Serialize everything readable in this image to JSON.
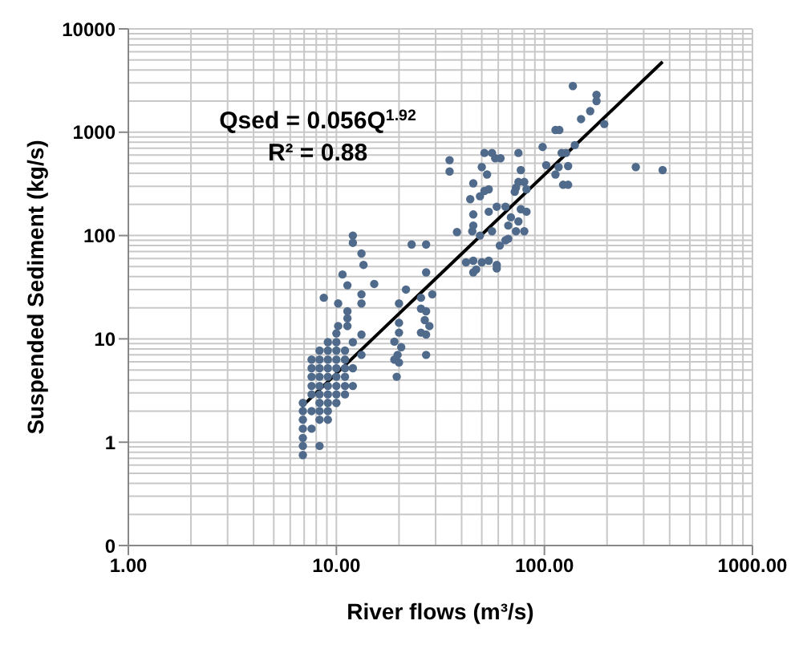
{
  "chart_data": {
    "type": "scatter",
    "xlabel": "River flows (m³/s)",
    "ylabel": "Suspended Sediment (kg/s)",
    "log": "xy",
    "grid": true,
    "xlim": [
      1,
      1000
    ],
    "ylim": [
      0.1,
      10000
    ],
    "xticks": [
      {
        "value": 1,
        "label": "1.00"
      },
      {
        "value": 10,
        "label": "10.00"
      },
      {
        "value": 100,
        "label": "100.00"
      },
      {
        "value": 1000,
        "label": "1000.00"
      }
    ],
    "yticks": [
      {
        "value": 0.1,
        "label": "0"
      },
      1,
      10,
      100,
      1000,
      10000
    ],
    "annotations": [
      "Qsed = 0.056Q$^{1.92}$",
      "R² = 0.88"
    ],
    "series": [
      {
        "color": "#4f6a8a",
        "marker": "circle",
        "x": [
          137,
          178,
          178,
          150,
          166,
          194,
          113,
          118,
          275,
          370,
          98,
          121,
          127,
          140,
          102,
          117,
          113,
          123,
          130,
          130,
          35,
          35,
          51.5,
          56,
          58,
          61.5,
          75,
          50,
          53,
          45.5,
          49,
          54,
          51.5,
          77,
          75,
          80,
          73,
          82,
          72,
          44,
          65,
          59,
          54,
          45.5,
          77,
          82,
          69,
          75,
          67,
          73,
          38,
          45,
          45.5,
          49,
          56,
          65,
          67,
          80,
          61,
          42,
          45.5,
          50,
          54,
          59,
          47,
          59,
          45.5,
          12,
          12,
          13.2,
          13.5,
          15.2,
          23,
          27,
          10.7,
          11.3,
          27,
          8.7,
          13.2,
          13.2,
          11.3,
          11.3,
          11.3,
          21.6,
          20,
          20,
          20,
          13.2,
          13.2,
          19,
          20.5,
          19.7,
          19,
          20,
          19.5,
          25.5,
          28.9,
          25.5,
          27,
          26.6,
          28,
          25.5,
          27,
          27,
          10.2,
          10.2,
          6.9,
          6.9,
          6.9,
          6.9,
          6.9,
          6.9,
          6.9,
          7.6,
          7.6,
          7.6,
          7.6,
          7.6,
          7.6,
          7.6,
          8.3,
          8.3,
          8.3,
          8.3,
          8.3,
          8.3,
          8.3,
          8.3,
          8.3,
          8.3,
          9.1,
          9.1,
          9.1,
          9.1,
          9.1,
          9.1,
          9.1,
          9.1,
          9.1,
          9.1,
          10,
          10,
          10,
          10,
          10,
          10,
          10,
          10,
          10,
          11,
          11,
          11,
          11,
          11,
          11,
          12,
          12,
          12
        ],
        "values": [
          2800,
          2300,
          2000,
          1340,
          1600,
          1200,
          1050,
          1050,
          460,
          430,
          720,
          630,
          630,
          750,
          480,
          460,
          390,
          310,
          310,
          470,
          537,
          417,
          630,
          630,
          560,
          560,
          630,
          460,
          390,
          320,
          240,
          280,
          270,
          430,
          330,
          330,
          290,
          280,
          265,
          225,
          190,
          190,
          170,
          160,
          180,
          170,
          150,
          137,
          125,
          110,
          108,
          110,
          125,
          100,
          110,
          90,
          93,
          110,
          80,
          55,
          57,
          55,
          57,
          52,
          47,
          48,
          44,
          100,
          85,
          67,
          52,
          34,
          82,
          82,
          42,
          33,
          44,
          25,
          27,
          22,
          18.5,
          15.8,
          13.3,
          30,
          22,
          14.3,
          11.5,
          11,
          7,
          9.4,
          8.3,
          7,
          6.3,
          5.9,
          4.3,
          25,
          27,
          19.6,
          18.5,
          15.2,
          13.3,
          11.5,
          11,
          7,
          22,
          13.3,
          0.75,
          0.92,
          1.1,
          1.35,
          1.65,
          2.0,
          2.4,
          1.35,
          2.0,
          2.9,
          3.5,
          4.3,
          5.2,
          6.3,
          0.92,
          1.65,
          2.0,
          2.4,
          2.9,
          3.5,
          4.3,
          5.2,
          6.3,
          7.7,
          1.65,
          2.0,
          2.4,
          2.9,
          3.5,
          4.3,
          5.2,
          6.3,
          7.7,
          9.3,
          2.4,
          2.9,
          3.5,
          4.3,
          5.2,
          6.3,
          7.7,
          9.3,
          11.3,
          2.9,
          3.5,
          4.3,
          5.2,
          6.3,
          7.7,
          3.5,
          5.2,
          9.3
        ]
      },
      {
        "type": "line",
        "color": "#000000",
        "marker": "none",
        "x": [
          6.8,
          370
        ],
        "values": [
          2.2,
          4800
        ]
      }
    ]
  }
}
